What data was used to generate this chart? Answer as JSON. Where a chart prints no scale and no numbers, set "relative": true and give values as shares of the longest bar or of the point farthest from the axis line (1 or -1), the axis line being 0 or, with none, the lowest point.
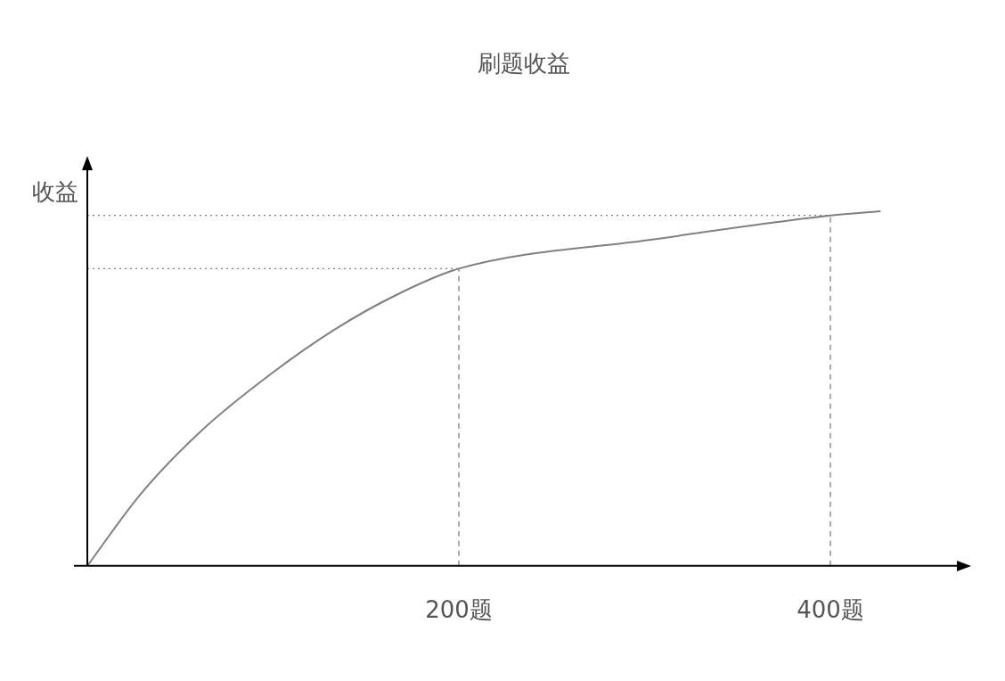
{
  "chart_data": {
    "type": "line",
    "title": "刷题收益",
    "ylabel": "收益",
    "relative": true,
    "x": [
      0,
      28.5,
      61.8,
      99.8,
      133,
      166,
      200,
      304,
      400,
      427
    ],
    "series": [
      {
        "color": "#808080",
        "values": [
          0,
          0.201,
          0.383,
          0.545,
          0.666,
          0.763,
          0.838,
          0.92,
          0.988,
          1
        ]
      }
    ],
    "xlim": [
      0,
      470
    ],
    "xticks": [
      {
        "value": 200,
        "label": "200题"
      },
      {
        "value": 400,
        "label": "400题"
      }
    ],
    "ref_lines": [
      {
        "axis": "y",
        "value": 0.838,
        "color": "#808080",
        "line_style": "dotted"
      },
      {
        "axis": "y",
        "value": 0.988,
        "color": "#808080",
        "line_style": "dotted"
      },
      {
        "axis": "x",
        "value": 200,
        "color": "#808080",
        "line_style": "dashed"
      },
      {
        "axis": "x",
        "value": 400,
        "color": "#808080",
        "line_style": "dashed"
      }
    ],
    "grid": false,
    "legend": false,
    "marker": "none",
    "line_style": "solid"
  }
}
